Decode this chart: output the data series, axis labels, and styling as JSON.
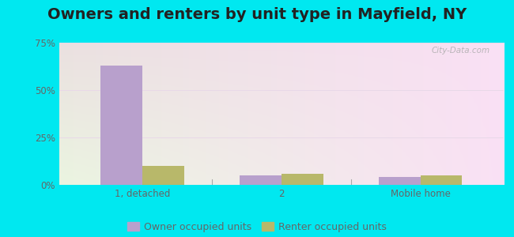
{
  "title": "Owners and renters by unit type in Mayfield, NY",
  "categories": [
    "1, detached",
    "2",
    "Mobile home"
  ],
  "owner_values": [
    63,
    5,
    4
  ],
  "renter_values": [
    10,
    6,
    5
  ],
  "owner_color": "#b8a0cc",
  "renter_color": "#b8b86a",
  "outer_bg": "#00e8f0",
  "ylim": [
    0,
    75
  ],
  "yticks": [
    0,
    25,
    50,
    75
  ],
  "yticklabels": [
    "0%",
    "25%",
    "50%",
    "75%"
  ],
  "bar_width": 0.3,
  "legend_labels": [
    "Owner occupied units",
    "Renter occupied units"
  ],
  "watermark": "City-Data.com",
  "title_fontsize": 14,
  "axis_fontsize": 8.5,
  "legend_fontsize": 9
}
